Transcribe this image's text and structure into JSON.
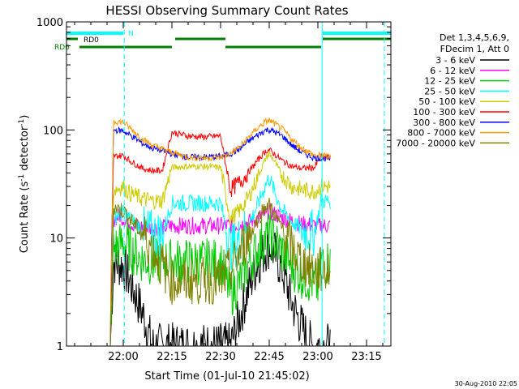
{
  "chart_data": {
    "type": "line",
    "title": "HESSI Observing Summary Count Rates",
    "xlabel": "Start Time (01-Jul-10 21:45:02)",
    "ylabel_main": "Count Rate (s",
    "ylabel_sup1": "-1",
    "ylabel_mid": " detector",
    "ylabel_sup2": "-1",
    "ylabel_end": ")",
    "yscale": "log",
    "ylim": [
      1,
      1000
    ],
    "xlim_minutes": [
      -2.5,
      97.5
    ],
    "x_ticks": [
      {
        "label": "22:00",
        "min": 15
      },
      {
        "label": "22:15",
        "min": 30
      },
      {
        "label": "22:30",
        "min": 45
      },
      {
        "label": "22:45",
        "min": 60
      },
      {
        "label": "23:00",
        "min": 75
      },
      {
        "label": "23:15",
        "min": 90
      }
    ],
    "y_ticks": [
      {
        "label": "1",
        "v": 1
      },
      {
        "label": "10",
        "v": 10
      },
      {
        "label": "100",
        "v": 100
      },
      {
        "label": "1000",
        "v": 1000
      }
    ],
    "legend_header": [
      "Det 1,3,4,5,6,9,",
      "FDecim 1, Att 0"
    ],
    "series": [
      {
        "name": "3 - 6 keV",
        "color": "#000000",
        "points": [
          [
            11,
            1
          ],
          [
            12,
            6
          ],
          [
            15,
            5.5
          ],
          [
            17,
            4
          ],
          [
            21,
            2
          ],
          [
            24,
            1
          ],
          [
            30,
            1
          ],
          [
            45,
            1
          ],
          [
            48,
            1
          ],
          [
            50,
            1.5
          ],
          [
            53,
            3
          ],
          [
            56,
            5.5
          ],
          [
            59,
            8
          ],
          [
            60,
            8.5
          ],
          [
            61,
            8
          ],
          [
            64,
            5
          ],
          [
            67,
            2.5
          ],
          [
            70,
            1.5
          ],
          [
            73,
            1
          ],
          [
            76,
            1
          ],
          [
            79,
            1
          ]
        ]
      },
      {
        "name": "6 - 12 keV",
        "color": "#ff00ff",
        "points": [
          [
            11,
            1
          ],
          [
            12,
            15
          ],
          [
            14,
            16
          ],
          [
            16,
            14.5
          ],
          [
            19,
            13
          ],
          [
            23,
            12.5
          ],
          [
            27,
            12.5
          ],
          [
            30,
            13
          ],
          [
            35,
            13
          ],
          [
            40,
            13
          ],
          [
            45,
            13
          ],
          [
            48,
            13
          ],
          [
            52,
            13.5
          ],
          [
            56,
            15
          ],
          [
            59,
            17
          ],
          [
            60,
            17.5
          ],
          [
            61,
            17
          ],
          [
            65,
            15
          ],
          [
            70,
            13.5
          ],
          [
            74,
            13
          ],
          [
            76,
            13
          ],
          [
            79,
            13
          ]
        ]
      },
      {
        "name": "12 - 25 keV",
        "color": "#00cc00",
        "points": [
          [
            11,
            1
          ],
          [
            12,
            8
          ],
          [
            15,
            9
          ],
          [
            17,
            8
          ],
          [
            20,
            6.5
          ],
          [
            24,
            6
          ],
          [
            27,
            6
          ],
          [
            30,
            6
          ],
          [
            35,
            6
          ],
          [
            40,
            6
          ],
          [
            45,
            6
          ],
          [
            48,
            3
          ],
          [
            51,
            4
          ],
          [
            54,
            6
          ],
          [
            57,
            8.5
          ],
          [
            59,
            10
          ],
          [
            60,
            10.5
          ],
          [
            61,
            10
          ],
          [
            64,
            7.5
          ],
          [
            67,
            5.5
          ],
          [
            70,
            4.5
          ],
          [
            73,
            4
          ],
          [
            75,
            3.5
          ],
          [
            76,
            6
          ],
          [
            79,
            6
          ]
        ]
      },
      {
        "name": "25 - 50 keV",
        "color": "#00ffff",
        "points": [
          [
            11,
            1
          ],
          [
            12,
            16
          ],
          [
            15,
            17
          ],
          [
            17,
            15
          ],
          [
            21,
            12
          ],
          [
            24,
            11
          ],
          [
            27,
            11
          ],
          [
            30,
            21
          ],
          [
            35,
            21
          ],
          [
            40,
            21
          ],
          [
            45,
            21
          ],
          [
            48,
            8
          ],
          [
            51,
            10
          ],
          [
            54,
            14
          ],
          [
            57,
            22
          ],
          [
            59,
            32
          ],
          [
            60,
            36
          ],
          [
            61,
            30
          ],
          [
            64,
            18
          ],
          [
            67,
            14
          ],
          [
            70,
            12
          ],
          [
            74,
            11
          ],
          [
            76,
            22
          ],
          [
            79,
            22
          ]
        ]
      },
      {
        "name": "50 - 100 keV",
        "color": "#cccc00",
        "points": [
          [
            11,
            1
          ],
          [
            12,
            28
          ],
          [
            15,
            30
          ],
          [
            17,
            26
          ],
          [
            21,
            23
          ],
          [
            24,
            22
          ],
          [
            27,
            22
          ],
          [
            30,
            45
          ],
          [
            35,
            46
          ],
          [
            40,
            46
          ],
          [
            45,
            45
          ],
          [
            48,
            15
          ],
          [
            51,
            18
          ],
          [
            54,
            25
          ],
          [
            57,
            40
          ],
          [
            59,
            55
          ],
          [
            60,
            60
          ],
          [
            61,
            55
          ],
          [
            64,
            38
          ],
          [
            67,
            30
          ],
          [
            70,
            28
          ],
          [
            74,
            27
          ],
          [
            76,
            30
          ],
          [
            79,
            30
          ]
        ]
      },
      {
        "name": "100 - 300 keV",
        "color": "#ff0000",
        "points": [
          [
            11,
            1
          ],
          [
            12,
            57
          ],
          [
            15,
            58
          ],
          [
            17,
            52
          ],
          [
            21,
            44
          ],
          [
            24,
            42
          ],
          [
            27,
            42
          ],
          [
            30,
            95
          ],
          [
            35,
            88
          ],
          [
            40,
            86
          ],
          [
            45,
            88
          ],
          [
            48,
            28
          ],
          [
            51,
            33
          ],
          [
            54,
            42
          ],
          [
            57,
            55
          ],
          [
            59,
            64
          ],
          [
            60,
            65
          ],
          [
            61,
            62
          ],
          [
            64,
            52
          ],
          [
            67,
            46
          ],
          [
            70,
            44
          ],
          [
            74,
            45
          ],
          [
            76,
            57
          ],
          [
            79,
            55
          ]
        ]
      },
      {
        "name": "300 - 800 keV",
        "color": "#0000ff",
        "points": [
          [
            11,
            1
          ],
          [
            12,
            100
          ],
          [
            15,
            98
          ],
          [
            17,
            90
          ],
          [
            21,
            75
          ],
          [
            24,
            68
          ],
          [
            28,
            63
          ],
          [
            30,
            60
          ],
          [
            35,
            56
          ],
          [
            40,
            56
          ],
          [
            45,
            57
          ],
          [
            48,
            60
          ],
          [
            51,
            67
          ],
          [
            54,
            80
          ],
          [
            57,
            92
          ],
          [
            59,
            100
          ],
          [
            60,
            100
          ],
          [
            61,
            98
          ],
          [
            64,
            88
          ],
          [
            67,
            72
          ],
          [
            70,
            62
          ],
          [
            74,
            55
          ],
          [
            76,
            55
          ],
          [
            79,
            54
          ]
        ]
      },
      {
        "name": "800 - 7000 keV",
        "color": "#ff9900",
        "points": [
          [
            11,
            1
          ],
          [
            12,
            120
          ],
          [
            15,
            118
          ],
          [
            17,
            105
          ],
          [
            21,
            82
          ],
          [
            24,
            72
          ],
          [
            28,
            65
          ],
          [
            30,
            62
          ],
          [
            35,
            56
          ],
          [
            40,
            55
          ],
          [
            45,
            56
          ],
          [
            48,
            60
          ],
          [
            51,
            70
          ],
          [
            54,
            88
          ],
          [
            57,
            108
          ],
          [
            59,
            120
          ],
          [
            60,
            122
          ],
          [
            61,
            118
          ],
          [
            64,
            102
          ],
          [
            67,
            82
          ],
          [
            70,
            68
          ],
          [
            74,
            58
          ],
          [
            76,
            58
          ],
          [
            79,
            56
          ]
        ]
      },
      {
        "name": "7000 - 20000 keV",
        "color": "#808000",
        "points": [
          [
            11,
            1
          ],
          [
            12,
            19
          ],
          [
            15,
            18
          ],
          [
            17,
            15
          ],
          [
            21,
            11
          ],
          [
            24,
            8
          ],
          [
            27,
            5.5
          ],
          [
            30,
            4
          ],
          [
            35,
            4
          ],
          [
            40,
            4
          ],
          [
            45,
            4
          ],
          [
            48,
            5
          ],
          [
            51,
            7.5
          ],
          [
            54,
            11
          ],
          [
            57,
            16
          ],
          [
            59,
            20
          ],
          [
            60,
            20
          ],
          [
            61,
            18
          ],
          [
            64,
            12
          ],
          [
            67,
            8
          ],
          [
            70,
            6
          ],
          [
            74,
            5
          ],
          [
            76,
            5
          ],
          [
            79,
            5
          ]
        ]
      }
    ],
    "annotations": [
      {
        "label": "N",
        "color": "#00ffff"
      },
      {
        "label": "RD0",
        "color": "#000000"
      },
      {
        "label": "RD6",
        "color": "#008000"
      }
    ],
    "footer_date": "30-Aug-2010 22:05"
  }
}
